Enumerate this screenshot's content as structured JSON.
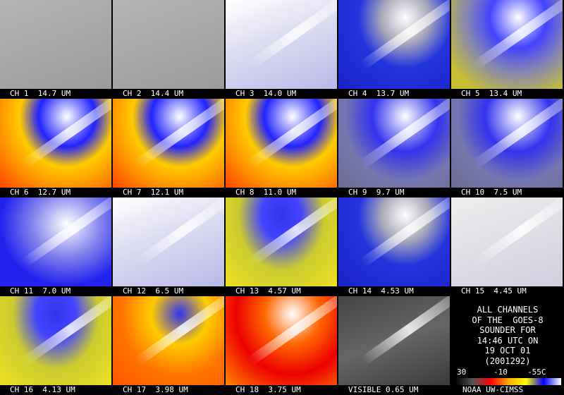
{
  "panels": [
    {
      "label": "CH 1  14.7 UM"
    },
    {
      "label": "CH 2  14.4 UM"
    },
    {
      "label": "CH 3  14.0 UM"
    },
    {
      "label": "CH 4  13.7 UM"
    },
    {
      "label": "CH 5  13.4 UM"
    },
    {
      "label": "CH 6  12.7 UM"
    },
    {
      "label": "CH 7  12.1 UM"
    },
    {
      "label": "CH 8  11.0 UM"
    },
    {
      "label": "CH 9  9.7 UM"
    },
    {
      "label": "CH 10  7.5 UM"
    },
    {
      "label": "CH 11  7.0 UM"
    },
    {
      "label": "CH 12  6.5 UM"
    },
    {
      "label": "CH 13  4.57 UM"
    },
    {
      "label": "CH 14  4.53 UM"
    },
    {
      "label": "CH 15  4.45 UM"
    },
    {
      "label": "CH 16  4.13 UM"
    },
    {
      "label": "CH 17  3.98 UM"
    },
    {
      "label": "CH 18  3.75 UM"
    },
    {
      "label": "VISIBLE 0.65 UM"
    }
  ],
  "info": {
    "lines": [
      "ALL CHANNELS",
      "OF THE  GOES-8",
      "SOUNDER FOR",
      "14:46 UTC ON",
      "19 OCT 01",
      "(2001292)"
    ],
    "colorbar_labels": [
      "30",
      "-10",
      "-55C"
    ],
    "credit": "NOAA UW-CIMSS"
  }
}
